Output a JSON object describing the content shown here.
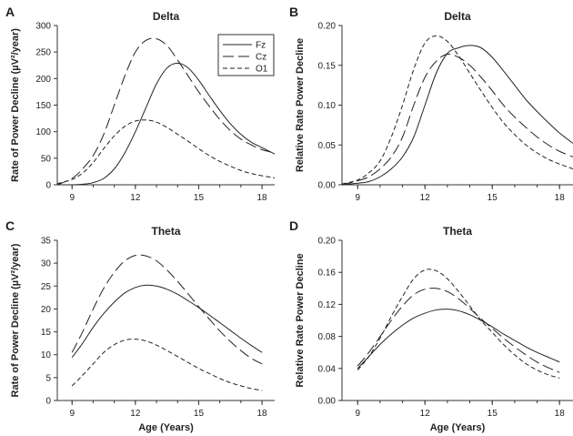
{
  "chart_data": [
    {
      "type": "line",
      "letter": "A",
      "title": "Delta",
      "ylabel": "Rate of Power Decline (µV²/year)",
      "xlabel": "",
      "xlim": [
        8.3,
        18.6
      ],
      "ylim": [
        0,
        300
      ],
      "yticks": [
        "0",
        "50",
        "100",
        "150",
        "200",
        "250",
        "300"
      ],
      "xticks": [
        "9",
        "12",
        "15",
        "18"
      ],
      "series": [
        {
          "name": "Fz",
          "dash": "solid",
          "x": [
            8.3,
            9,
            9.5,
            10,
            10.5,
            11,
            11.5,
            12,
            12.5,
            13,
            13.5,
            14,
            14.5,
            15,
            15.5,
            16,
            16.5,
            17,
            17.5,
            18,
            18.6
          ],
          "y": [
            0,
            0,
            1,
            4,
            12,
            30,
            60,
            100,
            145,
            190,
            220,
            229,
            220,
            197,
            168,
            140,
            115,
            95,
            80,
            70,
            58
          ]
        },
        {
          "name": "Cz",
          "dash": "long",
          "x": [
            8.3,
            9,
            9.5,
            10,
            10.5,
            11,
            11.5,
            12,
            12.5,
            13,
            13.5,
            14,
            14.5,
            15,
            15.5,
            16,
            16.5,
            17,
            17.5,
            18,
            18.6
          ],
          "y": [
            0,
            12,
            30,
            55,
            95,
            150,
            205,
            250,
            272,
            275,
            262,
            235,
            205,
            175,
            148,
            123,
            102,
            86,
            75,
            66,
            60
          ]
        },
        {
          "name": "O1",
          "dash": "short",
          "x": [
            8.3,
            9,
            9.5,
            10,
            10.5,
            11,
            11.5,
            12,
            12.5,
            13,
            13.5,
            14,
            14.5,
            15,
            15.5,
            16,
            16.5,
            17,
            17.5,
            18,
            18.6
          ],
          "y": [
            2,
            10,
            22,
            42,
            68,
            92,
            110,
            120,
            122,
            118,
            108,
            95,
            82,
            68,
            55,
            44,
            35,
            27,
            21,
            17,
            13
          ]
        }
      ]
    },
    {
      "type": "line",
      "letter": "B",
      "title": "Delta",
      "ylabel": "Relative Rate Power Decline",
      "xlabel": "",
      "xlim": [
        8.3,
        18.6
      ],
      "ylim": [
        0,
        0.2
      ],
      "yticks": [
        "0.00",
        "0.05",
        "0.10",
        "0.15",
        "0.20"
      ],
      "xticks": [
        "9",
        "12",
        "15",
        "18"
      ],
      "series": [
        {
          "name": "Fz",
          "dash": "solid",
          "x": [
            8.3,
            9,
            9.5,
            10,
            10.5,
            11,
            11.5,
            12,
            12.5,
            13,
            13.5,
            14,
            14.5,
            15,
            15.5,
            16,
            16.5,
            17,
            17.5,
            18,
            18.6
          ],
          "y": [
            0,
            0.002,
            0.004,
            0.01,
            0.02,
            0.035,
            0.06,
            0.1,
            0.14,
            0.165,
            0.172,
            0.175,
            0.172,
            0.16,
            0.143,
            0.125,
            0.107,
            0.092,
            0.078,
            0.065,
            0.052
          ]
        },
        {
          "name": "Cz",
          "dash": "long",
          "x": [
            8.3,
            9,
            9.5,
            10,
            10.5,
            11,
            11.5,
            12,
            12.5,
            13,
            13.5,
            14,
            14.5,
            15,
            15.5,
            16,
            16.5,
            17,
            17.5,
            18,
            18.6
          ],
          "y": [
            0,
            0.005,
            0.01,
            0.02,
            0.035,
            0.06,
            0.1,
            0.135,
            0.155,
            0.164,
            0.16,
            0.15,
            0.135,
            0.118,
            0.1,
            0.085,
            0.072,
            0.06,
            0.05,
            0.042,
            0.035
          ]
        },
        {
          "name": "O1",
          "dash": "short",
          "x": [
            8.3,
            9,
            9.5,
            10,
            10.5,
            11,
            11.5,
            12,
            12.5,
            13,
            13.5,
            14,
            14.5,
            15,
            15.5,
            16,
            16.5,
            17,
            17.5,
            18,
            18.6
          ],
          "y": [
            0.001,
            0.006,
            0.015,
            0.03,
            0.06,
            0.1,
            0.145,
            0.178,
            0.187,
            0.18,
            0.162,
            0.14,
            0.118,
            0.097,
            0.078,
            0.063,
            0.05,
            0.04,
            0.032,
            0.026,
            0.02
          ]
        }
      ]
    },
    {
      "type": "line",
      "letter": "C",
      "title": "Theta",
      "ylabel": "Rate of Power Decline (µV²/year)",
      "xlabel": "Age (Years)",
      "xlim": [
        8.3,
        18.6
      ],
      "ylim": [
        0,
        35
      ],
      "yticks": [
        "0",
        "5",
        "10",
        "15",
        "20",
        "25",
        "30",
        "35"
      ],
      "xticks": [
        "9",
        "12",
        "15",
        "18"
      ],
      "series": [
        {
          "name": "Fz",
          "dash": "solid",
          "x": [
            9,
            9.5,
            10,
            10.5,
            11,
            11.5,
            12,
            12.5,
            13,
            13.5,
            14,
            14.5,
            15,
            15.5,
            16,
            16.5,
            17,
            17.5,
            18
          ],
          "y": [
            9.4,
            12.5,
            16,
            19,
            21.5,
            23.5,
            24.7,
            25.2,
            25,
            24.3,
            23.2,
            21.8,
            20.3,
            18.7,
            17,
            15.3,
            13.6,
            12,
            10.5
          ]
        },
        {
          "name": "Cz",
          "dash": "long",
          "x": [
            9,
            9.5,
            10,
            10.5,
            11,
            11.5,
            12,
            12.5,
            13,
            13.5,
            14,
            14.5,
            15,
            15.5,
            16,
            16.5,
            17,
            17.5,
            18
          ],
          "y": [
            10.5,
            15,
            20,
            24.5,
            28,
            30.5,
            31.7,
            31.6,
            30.5,
            28.5,
            26,
            23.3,
            20.5,
            17.8,
            15.2,
            12.9,
            10.9,
            9.2,
            8
          ]
        },
        {
          "name": "O1",
          "dash": "short",
          "x": [
            9,
            9.5,
            10,
            10.5,
            11,
            11.5,
            12,
            12.5,
            13,
            13.5,
            14,
            14.5,
            15,
            15.5,
            16,
            16.5,
            17,
            17.5,
            18
          ],
          "y": [
            3.2,
            5.5,
            8,
            10.5,
            12.2,
            13.2,
            13.4,
            13,
            12.1,
            10.9,
            9.6,
            8.3,
            7,
            5.9,
            4.8,
            3.9,
            3.2,
            2.6,
            2.2
          ]
        }
      ]
    },
    {
      "type": "line",
      "letter": "D",
      "title": "Theta",
      "ylabel": "Relative Rate Power Decline",
      "xlabel": "Age (Years)",
      "xlim": [
        8.3,
        18.6
      ],
      "ylim": [
        0,
        0.2
      ],
      "yticks": [
        "0.00",
        "0.04",
        "0.08",
        "0.12",
        "0.16",
        "0.20"
      ],
      "xticks": [
        "9",
        "12",
        "15",
        "18"
      ],
      "series": [
        {
          "name": "Fz",
          "dash": "solid",
          "x": [
            9,
            9.5,
            10,
            10.5,
            11,
            11.5,
            12,
            12.5,
            13,
            13.5,
            14,
            14.5,
            15,
            15.5,
            16,
            16.5,
            17,
            17.5,
            18
          ],
          "y": [
            0.04,
            0.055,
            0.07,
            0.083,
            0.094,
            0.103,
            0.109,
            0.113,
            0.114,
            0.112,
            0.107,
            0.1,
            0.092,
            0.083,
            0.075,
            0.067,
            0.06,
            0.054,
            0.048
          ]
        },
        {
          "name": "Cz",
          "dash": "long",
          "x": [
            9,
            9.5,
            10,
            10.5,
            11,
            11.5,
            12,
            12.5,
            13,
            13.5,
            14,
            14.5,
            15,
            15.5,
            16,
            16.5,
            17,
            17.5,
            18
          ],
          "y": [
            0.043,
            0.06,
            0.08,
            0.1,
            0.118,
            0.132,
            0.139,
            0.14,
            0.136,
            0.127,
            0.115,
            0.102,
            0.09,
            0.078,
            0.067,
            0.057,
            0.048,
            0.041,
            0.035
          ]
        },
        {
          "name": "O1",
          "dash": "short",
          "x": [
            9,
            9.5,
            10,
            10.5,
            11,
            11.5,
            12,
            12.5,
            13,
            13.5,
            14,
            14.5,
            15,
            15.5,
            16,
            16.5,
            17,
            17.5,
            18
          ],
          "y": [
            0.038,
            0.055,
            0.078,
            0.105,
            0.13,
            0.152,
            0.163,
            0.162,
            0.152,
            0.136,
            0.118,
            0.1,
            0.085,
            0.07,
            0.057,
            0.046,
            0.038,
            0.032,
            0.028
          ]
        }
      ]
    }
  ]
}
